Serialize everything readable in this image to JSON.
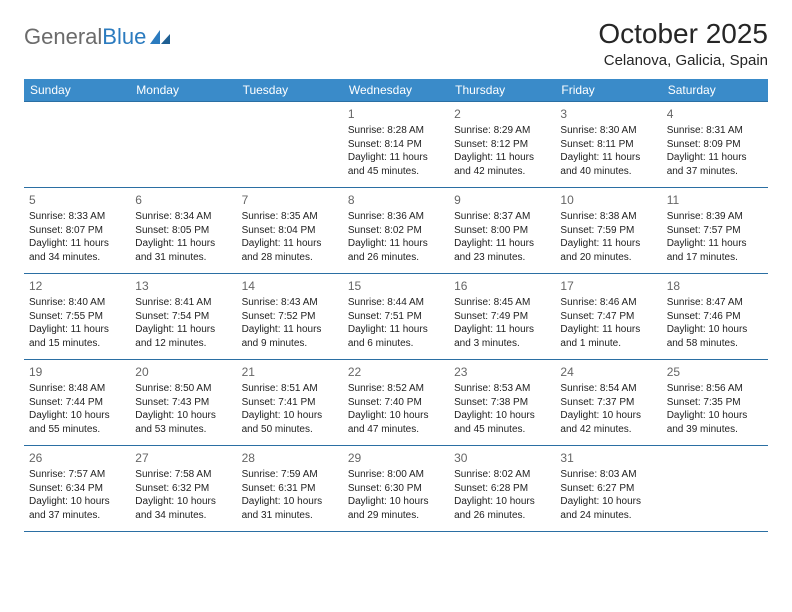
{
  "brand": {
    "part1": "General",
    "part2": "Blue"
  },
  "title": "October 2025",
  "location": "Celanova, Galicia, Spain",
  "colors": {
    "header_bg": "#3a8bc9",
    "header_text": "#ffffff",
    "border": "#2b6fa3",
    "logo_gray": "#6b6b6b",
    "logo_blue": "#2b7bbf",
    "text": "#222222",
    "daynum": "#666666"
  },
  "weekdays": [
    "Sunday",
    "Monday",
    "Tuesday",
    "Wednesday",
    "Thursday",
    "Friday",
    "Saturday"
  ],
  "weeks": [
    [
      {
        "day": "",
        "sunrise": "",
        "sunset": "",
        "daylight": ""
      },
      {
        "day": "",
        "sunrise": "",
        "sunset": "",
        "daylight": ""
      },
      {
        "day": "",
        "sunrise": "",
        "sunset": "",
        "daylight": ""
      },
      {
        "day": "1",
        "sunrise": "Sunrise: 8:28 AM",
        "sunset": "Sunset: 8:14 PM",
        "daylight": "Daylight: 11 hours and 45 minutes."
      },
      {
        "day": "2",
        "sunrise": "Sunrise: 8:29 AM",
        "sunset": "Sunset: 8:12 PM",
        "daylight": "Daylight: 11 hours and 42 minutes."
      },
      {
        "day": "3",
        "sunrise": "Sunrise: 8:30 AM",
        "sunset": "Sunset: 8:11 PM",
        "daylight": "Daylight: 11 hours and 40 minutes."
      },
      {
        "day": "4",
        "sunrise": "Sunrise: 8:31 AM",
        "sunset": "Sunset: 8:09 PM",
        "daylight": "Daylight: 11 hours and 37 minutes."
      }
    ],
    [
      {
        "day": "5",
        "sunrise": "Sunrise: 8:33 AM",
        "sunset": "Sunset: 8:07 PM",
        "daylight": "Daylight: 11 hours and 34 minutes."
      },
      {
        "day": "6",
        "sunrise": "Sunrise: 8:34 AM",
        "sunset": "Sunset: 8:05 PM",
        "daylight": "Daylight: 11 hours and 31 minutes."
      },
      {
        "day": "7",
        "sunrise": "Sunrise: 8:35 AM",
        "sunset": "Sunset: 8:04 PM",
        "daylight": "Daylight: 11 hours and 28 minutes."
      },
      {
        "day": "8",
        "sunrise": "Sunrise: 8:36 AM",
        "sunset": "Sunset: 8:02 PM",
        "daylight": "Daylight: 11 hours and 26 minutes."
      },
      {
        "day": "9",
        "sunrise": "Sunrise: 8:37 AM",
        "sunset": "Sunset: 8:00 PM",
        "daylight": "Daylight: 11 hours and 23 minutes."
      },
      {
        "day": "10",
        "sunrise": "Sunrise: 8:38 AM",
        "sunset": "Sunset: 7:59 PM",
        "daylight": "Daylight: 11 hours and 20 minutes."
      },
      {
        "day": "11",
        "sunrise": "Sunrise: 8:39 AM",
        "sunset": "Sunset: 7:57 PM",
        "daylight": "Daylight: 11 hours and 17 minutes."
      }
    ],
    [
      {
        "day": "12",
        "sunrise": "Sunrise: 8:40 AM",
        "sunset": "Sunset: 7:55 PM",
        "daylight": "Daylight: 11 hours and 15 minutes."
      },
      {
        "day": "13",
        "sunrise": "Sunrise: 8:41 AM",
        "sunset": "Sunset: 7:54 PM",
        "daylight": "Daylight: 11 hours and 12 minutes."
      },
      {
        "day": "14",
        "sunrise": "Sunrise: 8:43 AM",
        "sunset": "Sunset: 7:52 PM",
        "daylight": "Daylight: 11 hours and 9 minutes."
      },
      {
        "day": "15",
        "sunrise": "Sunrise: 8:44 AM",
        "sunset": "Sunset: 7:51 PM",
        "daylight": "Daylight: 11 hours and 6 minutes."
      },
      {
        "day": "16",
        "sunrise": "Sunrise: 8:45 AM",
        "sunset": "Sunset: 7:49 PM",
        "daylight": "Daylight: 11 hours and 3 minutes."
      },
      {
        "day": "17",
        "sunrise": "Sunrise: 8:46 AM",
        "sunset": "Sunset: 7:47 PM",
        "daylight": "Daylight: 11 hours and 1 minute."
      },
      {
        "day": "18",
        "sunrise": "Sunrise: 8:47 AM",
        "sunset": "Sunset: 7:46 PM",
        "daylight": "Daylight: 10 hours and 58 minutes."
      }
    ],
    [
      {
        "day": "19",
        "sunrise": "Sunrise: 8:48 AM",
        "sunset": "Sunset: 7:44 PM",
        "daylight": "Daylight: 10 hours and 55 minutes."
      },
      {
        "day": "20",
        "sunrise": "Sunrise: 8:50 AM",
        "sunset": "Sunset: 7:43 PM",
        "daylight": "Daylight: 10 hours and 53 minutes."
      },
      {
        "day": "21",
        "sunrise": "Sunrise: 8:51 AM",
        "sunset": "Sunset: 7:41 PM",
        "daylight": "Daylight: 10 hours and 50 minutes."
      },
      {
        "day": "22",
        "sunrise": "Sunrise: 8:52 AM",
        "sunset": "Sunset: 7:40 PM",
        "daylight": "Daylight: 10 hours and 47 minutes."
      },
      {
        "day": "23",
        "sunrise": "Sunrise: 8:53 AM",
        "sunset": "Sunset: 7:38 PM",
        "daylight": "Daylight: 10 hours and 45 minutes."
      },
      {
        "day": "24",
        "sunrise": "Sunrise: 8:54 AM",
        "sunset": "Sunset: 7:37 PM",
        "daylight": "Daylight: 10 hours and 42 minutes."
      },
      {
        "day": "25",
        "sunrise": "Sunrise: 8:56 AM",
        "sunset": "Sunset: 7:35 PM",
        "daylight": "Daylight: 10 hours and 39 minutes."
      }
    ],
    [
      {
        "day": "26",
        "sunrise": "Sunrise: 7:57 AM",
        "sunset": "Sunset: 6:34 PM",
        "daylight": "Daylight: 10 hours and 37 minutes."
      },
      {
        "day": "27",
        "sunrise": "Sunrise: 7:58 AM",
        "sunset": "Sunset: 6:32 PM",
        "daylight": "Daylight: 10 hours and 34 minutes."
      },
      {
        "day": "28",
        "sunrise": "Sunrise: 7:59 AM",
        "sunset": "Sunset: 6:31 PM",
        "daylight": "Daylight: 10 hours and 31 minutes."
      },
      {
        "day": "29",
        "sunrise": "Sunrise: 8:00 AM",
        "sunset": "Sunset: 6:30 PM",
        "daylight": "Daylight: 10 hours and 29 minutes."
      },
      {
        "day": "30",
        "sunrise": "Sunrise: 8:02 AM",
        "sunset": "Sunset: 6:28 PM",
        "daylight": "Daylight: 10 hours and 26 minutes."
      },
      {
        "day": "31",
        "sunrise": "Sunrise: 8:03 AM",
        "sunset": "Sunset: 6:27 PM",
        "daylight": "Daylight: 10 hours and 24 minutes."
      },
      {
        "day": "",
        "sunrise": "",
        "sunset": "",
        "daylight": ""
      }
    ]
  ]
}
